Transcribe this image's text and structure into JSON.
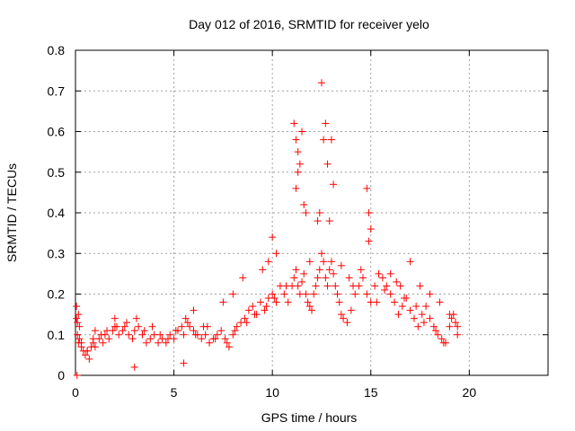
{
  "chart_data": {
    "type": "scatter",
    "title": "Day 012 of 2016, SRMTID for receiver yelo",
    "xlabel": "GPS time / hours",
    "ylabel": "SRMTID / TECUs",
    "xlim": [
      0,
      24
    ],
    "ylim": [
      0,
      0.8
    ],
    "xticks": [
      0,
      5,
      10,
      15,
      20
    ],
    "xtick_labels": [
      "0",
      "5",
      "10",
      "15",
      "20"
    ],
    "yticks": [
      0,
      0.1,
      0.2,
      0.3,
      0.4,
      0.5,
      0.6,
      0.7,
      0.8
    ],
    "ytick_labels": [
      "0",
      "0.1",
      "0.2",
      "0.3",
      "0.4",
      "0.5",
      "0.6",
      "0.7",
      "0.8"
    ],
    "grid": true,
    "marker": "+",
    "series": [
      {
        "name": "SRMTID",
        "color": "#ff0000",
        "x": [
          0.05,
          0.08,
          0.1,
          0.15,
          0.2,
          0.3,
          0.4,
          0.5,
          0.6,
          0.7,
          0.8,
          0.9,
          1.0,
          1.2,
          1.4,
          1.5,
          1.7,
          1.9,
          2.0,
          2.2,
          2.4,
          2.5,
          2.7,
          2.9,
          3.0,
          3.2,
          3.4,
          3.6,
          3.8,
          4.0,
          4.2,
          4.4,
          4.6,
          4.8,
          5.0,
          5.2,
          5.4,
          5.5,
          5.6,
          5.8,
          6.0,
          6.2,
          6.4,
          6.5,
          6.6,
          6.8,
          7.0,
          7.2,
          7.4,
          7.6,
          7.8,
          8.0,
          8.2,
          8.4,
          8.6,
          8.8,
          9.0,
          9.2,
          9.4,
          9.6,
          9.8,
          10.0,
          10.2,
          10.4,
          10.6,
          10.8,
          11.0,
          11.1,
          11.2,
          11.3,
          11.4,
          11.5,
          11.6,
          11.7,
          11.8,
          11.9,
          12.0,
          12.1,
          12.2,
          12.3,
          12.4,
          12.5,
          12.6,
          12.7,
          12.8,
          12.9,
          13.0,
          13.1,
          13.2,
          13.3,
          13.4,
          13.5,
          13.6,
          13.8,
          14.0,
          14.2,
          14.4,
          14.6,
          14.8,
          15.0,
          15.2,
          15.4,
          15.6,
          15.8,
          16.0,
          16.2,
          16.4,
          16.6,
          16.8,
          17.0,
          17.2,
          17.4,
          17.6,
          17.8,
          18.0,
          18.2,
          18.4,
          18.6,
          18.8,
          19.0,
          19.2,
          19.4,
          11.1,
          11.2,
          11.3,
          11.4,
          11.5,
          11.3,
          11.2,
          11.6,
          11.7,
          12.5,
          12.6,
          12.7,
          12.8,
          13.0,
          13.1,
          12.4,
          12.9,
          14.8,
          14.9,
          15.0,
          14.9,
          10.0,
          10.2,
          9.8,
          9.5,
          8.5,
          8.0,
          7.5,
          6.0,
          5.5,
          3.0,
          2.0,
          1.0,
          0.1,
          0.15,
          0.2,
          0.05,
          16.0,
          16.5,
          17.0,
          17.5,
          18.0,
          18.5,
          19.0,
          19.3,
          19.4,
          0.3,
          0.6,
          0.9,
          1.3,
          1.6,
          2.1,
          2.6,
          3.1,
          3.5,
          3.9,
          4.3,
          4.7,
          5.1,
          5.7,
          6.1,
          6.7,
          7.1,
          7.7,
          8.1,
          8.7,
          9.1,
          9.7,
          10.1,
          10.7,
          11.9,
          12.3,
          13.5,
          13.9,
          14.1,
          14.5,
          15.3,
          15.7,
          16.3,
          16.7,
          17.3,
          17.7,
          18.3,
          18.7,
          19.1
        ],
        "y": [
          0.14,
          0.0,
          0.1,
          0.08,
          0.09,
          0.07,
          0.06,
          0.05,
          0.06,
          0.04,
          0.07,
          0.08,
          0.07,
          0.09,
          0.08,
          0.1,
          0.09,
          0.11,
          0.12,
          0.1,
          0.11,
          0.12,
          0.1,
          0.09,
          0.11,
          0.12,
          0.1,
          0.08,
          0.09,
          0.1,
          0.08,
          0.09,
          0.08,
          0.1,
          0.09,
          0.11,
          0.12,
          0.1,
          0.14,
          0.12,
          0.11,
          0.1,
          0.09,
          0.12,
          0.1,
          0.08,
          0.09,
          0.1,
          0.11,
          0.09,
          0.07,
          0.1,
          0.12,
          0.13,
          0.14,
          0.16,
          0.17,
          0.15,
          0.18,
          0.16,
          0.19,
          0.2,
          0.18,
          0.22,
          0.2,
          0.18,
          0.22,
          0.24,
          0.26,
          0.22,
          0.2,
          0.23,
          0.25,
          0.2,
          0.18,
          0.17,
          0.16,
          0.2,
          0.22,
          0.24,
          0.26,
          0.3,
          0.28,
          0.24,
          0.22,
          0.26,
          0.28,
          0.25,
          0.22,
          0.2,
          0.18,
          0.15,
          0.14,
          0.13,
          0.16,
          0.2,
          0.22,
          0.24,
          0.2,
          0.18,
          0.22,
          0.25,
          0.24,
          0.22,
          0.2,
          0.18,
          0.15,
          0.17,
          0.19,
          0.16,
          0.14,
          0.12,
          0.15,
          0.17,
          0.14,
          0.12,
          0.1,
          0.09,
          0.08,
          0.12,
          0.15,
          0.1,
          0.62,
          0.58,
          0.55,
          0.52,
          0.6,
          0.5,
          0.46,
          0.42,
          0.4,
          0.72,
          0.58,
          0.62,
          0.52,
          0.58,
          0.47,
          0.4,
          0.38,
          0.46,
          0.4,
          0.36,
          0.33,
          0.34,
          0.3,
          0.28,
          0.26,
          0.24,
          0.2,
          0.18,
          0.16,
          0.03,
          0.02,
          0.14,
          0.11,
          0.13,
          0.15,
          0.12,
          0.17,
          0.25,
          0.22,
          0.28,
          0.22,
          0.2,
          0.18,
          0.15,
          0.13,
          0.12,
          0.08,
          0.06,
          0.09,
          0.1,
          0.11,
          0.12,
          0.13,
          0.14,
          0.11,
          0.12,
          0.1,
          0.09,
          0.11,
          0.13,
          0.1,
          0.12,
          0.09,
          0.08,
          0.11,
          0.13,
          0.15,
          0.17,
          0.19,
          0.22,
          0.28,
          0.38,
          0.27,
          0.24,
          0.22,
          0.26,
          0.18,
          0.21,
          0.23,
          0.19,
          0.17,
          0.13,
          0.11,
          0.08,
          0.14
        ]
      }
    ]
  }
}
